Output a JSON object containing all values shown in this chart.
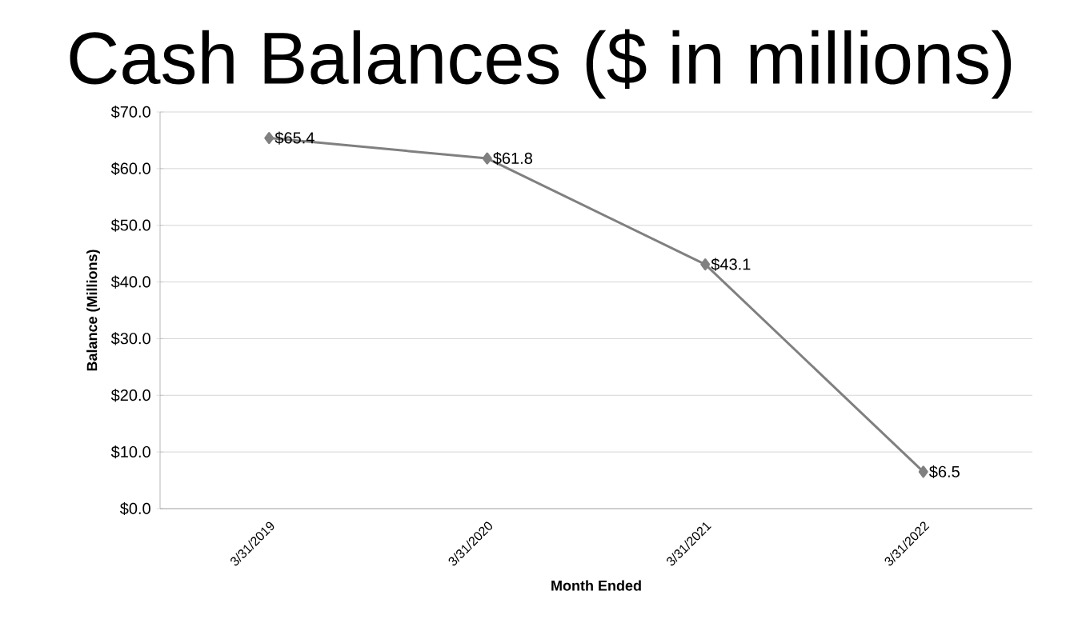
{
  "chart_data": {
    "type": "line",
    "title": "Cash Balances ($ in millions)",
    "xlabel": "Month Ended",
    "ylabel": "Balance (Millions)",
    "categories": [
      "3/31/2019",
      "3/31/2020",
      "3/31/2021",
      "3/31/2022"
    ],
    "values": [
      65.4,
      61.8,
      43.1,
      6.5
    ],
    "value_labels": [
      "$65.4",
      "$61.8",
      "$43.1",
      "$6.5"
    ],
    "color": "#808080",
    "marker": "diamond",
    "grid": "y",
    "ylim": [
      0,
      70
    ],
    "yticks": [
      {
        "value": 0,
        "label": "$0.0"
      },
      {
        "value": 10,
        "label": "$10.0"
      },
      {
        "value": 20,
        "label": "$20.0"
      },
      {
        "value": 30,
        "label": "$30.0"
      },
      {
        "value": 40,
        "label": "$40.0"
      },
      {
        "value": 50,
        "label": "$50.0"
      },
      {
        "value": 60,
        "label": "$60.0"
      },
      {
        "value": 70,
        "label": "$70.0"
      }
    ]
  }
}
